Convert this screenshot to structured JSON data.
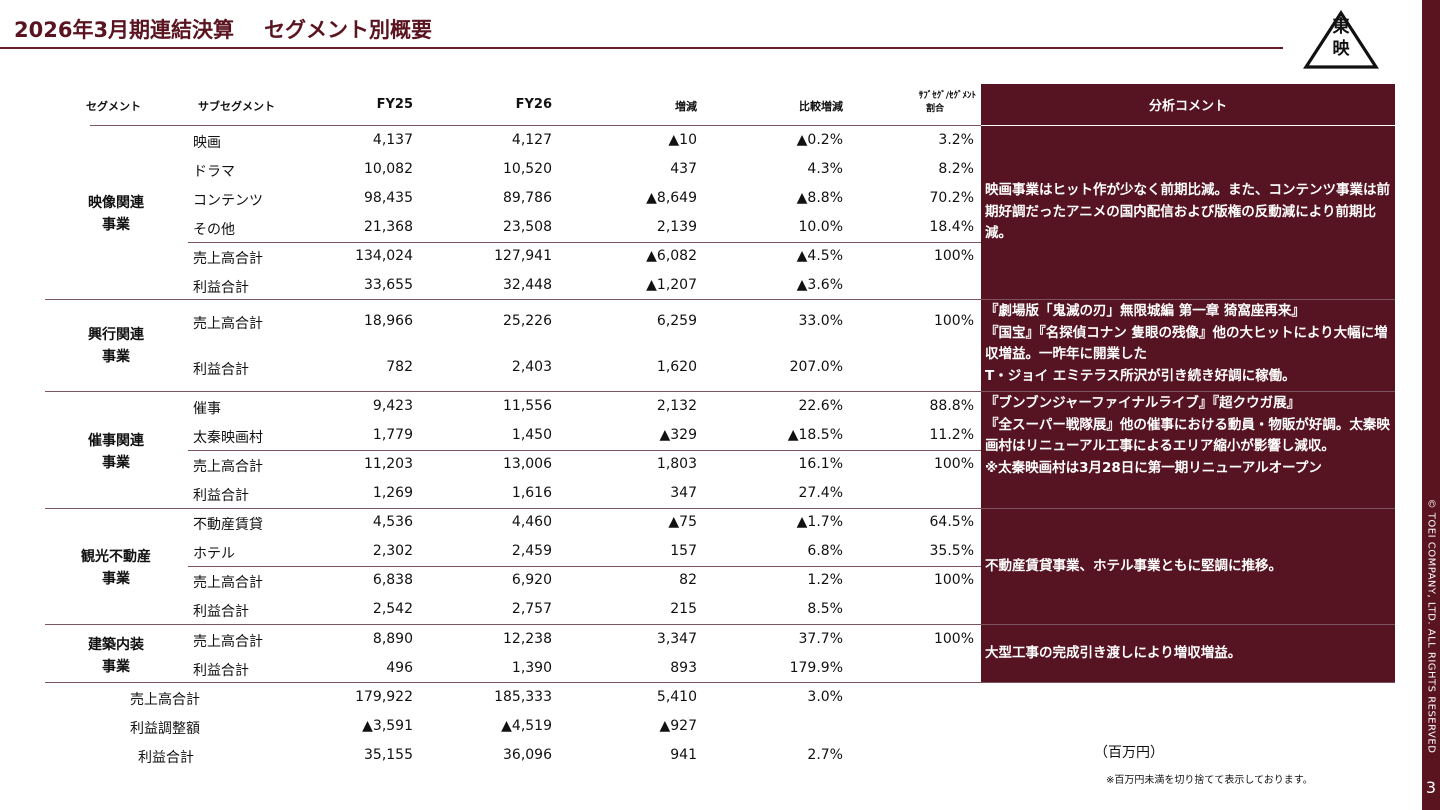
{
  "header": {
    "title_left": "2026年3月期連結決算",
    "title_right": "セグメント別概要",
    "logo_text": [
      "東",
      "映"
    ]
  },
  "table": {
    "columns": {
      "segment": "セグメント",
      "subsegment": "サブセグメント",
      "fy25": "FY25",
      "fy26": "FY26",
      "diff": "増減",
      "pct": "比較増減",
      "share_line1": "ｻﾌﾞｾｸﾞ/ｾｸﾞﾒﾝﾄ",
      "share_line2": "割合",
      "comment": "分析コメント"
    },
    "segments": [
      {
        "label_line1": "映像関連",
        "label_line2": "事業",
        "rows": [
          {
            "sub": "映画",
            "fy25": "4,137",
            "fy26": "4,127",
            "diff": "▲10",
            "pct": "▲0.2%",
            "share": "3.2%"
          },
          {
            "sub": "ドラマ",
            "fy25": "10,082",
            "fy26": "10,520",
            "diff": "437",
            "pct": "4.3%",
            "share": "8.2%"
          },
          {
            "sub": "コンテンツ",
            "fy25": "98,435",
            "fy26": "89,786",
            "diff": "▲8,649",
            "pct": "▲8.8%",
            "share": "70.2%"
          },
          {
            "sub": "その他",
            "fy25": "21,368",
            "fy26": "23,508",
            "diff": "2,139",
            "pct": "10.0%",
            "share": "18.4%"
          },
          {
            "sub": "売上高合計",
            "fy25": "134,024",
            "fy26": "127,941",
            "diff": "▲6,082",
            "pct": "▲4.5%",
            "share": "100%"
          },
          {
            "sub": "利益合計",
            "fy25": "33,655",
            "fy26": "32,448",
            "diff": "▲1,207",
            "pct": "▲3.6%",
            "share": ""
          }
        ],
        "comment": "映画事業はヒット作が少なく前期比減。また、コンテンツ事業は前期好調だったアニメの国内配信および版権の反動減により前期比減。"
      },
      {
        "label_line1": "興行関連",
        "label_line2": "事業",
        "rows": [
          {
            "sub": "売上高合計",
            "fy25": "18,966",
            "fy26": "25,226",
            "diff": "6,259",
            "pct": "33.0%",
            "share": "100%"
          },
          {
            "sub": "利益合計",
            "fy25": "782",
            "fy26": "2,403",
            "diff": "1,620",
            "pct": "207.0%",
            "share": ""
          }
        ],
        "comment": "『劇場版「鬼滅の刃」無限城編 第一章 猗窩座再来』\n『国宝』『名探偵コナン 隻眼の残像』他の大ヒットにより大幅に増収増益。一昨年に開業した\nT・ジョイ エミテラス所沢が引き続き好調に稼働。"
      },
      {
        "label_line1": "催事関連",
        "label_line2": "事業",
        "rows": [
          {
            "sub": "催事",
            "fy25": "9,423",
            "fy26": "11,556",
            "diff": "2,132",
            "pct": "22.6%",
            "share": "88.8%"
          },
          {
            "sub": "太秦映画村",
            "fy25": "1,779",
            "fy26": "1,450",
            "diff": "▲329",
            "pct": "▲18.5%",
            "share": "11.2%"
          },
          {
            "sub": "売上高合計",
            "fy25": "11,203",
            "fy26": "13,006",
            "diff": "1,803",
            "pct": "16.1%",
            "share": "100%"
          },
          {
            "sub": "利益合計",
            "fy25": "1,269",
            "fy26": "1,616",
            "diff": "347",
            "pct": "27.4%",
            "share": ""
          }
        ],
        "comment": "『ブンブンジャーファイナルライブ』『超クウガ展』\n『全スーパー戦隊展』他の催事における動員・物販が好調。太秦映画村はリニューアル工事によるエリア縮小が影響し減収。\n※太秦映画村は3月28日に第一期リニューアルオープン"
      },
      {
        "label_line1": "観光不動産",
        "label_line2": "事業",
        "rows": [
          {
            "sub": "不動産賃貸",
            "fy25": "4,536",
            "fy26": "4,460",
            "diff": "▲75",
            "pct": "▲1.7%",
            "share": "64.5%"
          },
          {
            "sub": "ホテル",
            "fy25": "2,302",
            "fy26": "2,459",
            "diff": "157",
            "pct": "6.8%",
            "share": "35.5%"
          },
          {
            "sub": "売上高合計",
            "fy25": "6,838",
            "fy26": "6,920",
            "diff": "82",
            "pct": "1.2%",
            "share": "100%"
          },
          {
            "sub": "利益合計",
            "fy25": "2,542",
            "fy26": "2,757",
            "diff": "215",
            "pct": "8.5%",
            "share": ""
          }
        ],
        "comment": "不動産賃貸事業、ホテル事業ともに堅調に推移。"
      },
      {
        "label_line1": "建築内装",
        "label_line2": "事業",
        "rows": [
          {
            "sub": "売上高合計",
            "fy25": "8,890",
            "fy26": "12,238",
            "diff": "3,347",
            "pct": "37.7%",
            "share": "100%"
          },
          {
            "sub": "利益合計",
            "fy25": "496",
            "fy26": "1,390",
            "diff": "893",
            "pct": "179.9%",
            "share": ""
          }
        ],
        "comment": "大型工事の完成引き渡しにより増収増益。"
      }
    ],
    "totals": [
      {
        "label": "売上高合計",
        "fy25": "179,922",
        "fy26": "185,333",
        "diff": "5,410",
        "pct": "3.0%"
      },
      {
        "label": "利益調整額",
        "fy25": "▲3,591",
        "fy26": "▲4,519",
        "diff": "▲927",
        "pct": ""
      },
      {
        "label": "利益合計",
        "fy25": "35,155",
        "fy26": "36,096",
        "diff": "941",
        "pct": "2.7%"
      }
    ]
  },
  "footer": {
    "unit": "（百万円）",
    "note": "※百万円未満を切り捨てて表示しております。",
    "copyright": "© TOEI COMPANY, LTD. ALL RIGHTS RESERVED",
    "page_number": "3"
  }
}
